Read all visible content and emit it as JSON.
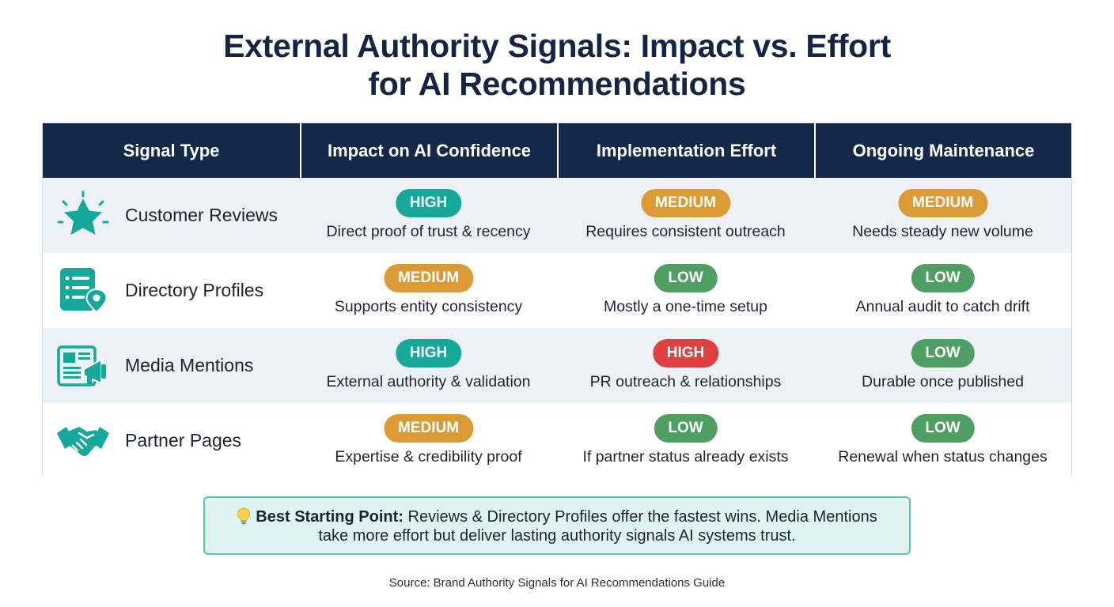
{
  "title": {
    "line1": "External Authority Signals: Impact vs. Effort",
    "line2": "for AI Recommendations"
  },
  "table": {
    "headers": [
      "Signal Type",
      "Impact on AI Confidence",
      "Implementation Effort",
      "Ongoing Maintenance"
    ],
    "rows": [
      {
        "signal": "Customer Reviews",
        "icon": "star-icon",
        "impact": {
          "level": "HIGH",
          "desc": "Direct proof of trust & recency"
        },
        "effort": {
          "level": "MEDIUM",
          "desc": "Requires consistent outreach"
        },
        "maintenance": {
          "level": "MEDIUM",
          "desc": "Needs steady new volume"
        }
      },
      {
        "signal": "Directory Profiles",
        "icon": "directory-listing-icon",
        "impact": {
          "level": "MEDIUM",
          "desc": "Supports entity consistency"
        },
        "effort": {
          "level": "LOW",
          "desc": "Mostly a one-time setup"
        },
        "maintenance": {
          "level": "LOW",
          "desc": "Annual audit to catch drift"
        }
      },
      {
        "signal": "Media Mentions",
        "icon": "newspaper-megaphone-icon",
        "impact": {
          "level": "HIGH",
          "desc": "External authority & validation"
        },
        "effort": {
          "level": "HIGH",
          "desc": "PR outreach & relationships"
        },
        "maintenance": {
          "level": "LOW",
          "desc": "Durable once published"
        }
      },
      {
        "signal": "Partner Pages",
        "icon": "handshake-icon",
        "impact": {
          "level": "MEDIUM",
          "desc": "Expertise & credibility proof"
        },
        "effort": {
          "level": "LOW",
          "desc": "If partner status already exists"
        },
        "maintenance": {
          "level": "LOW",
          "desc": "Renewal when status changes"
        }
      }
    ]
  },
  "callout": {
    "icon": "lightbulb-icon",
    "label": "Best Starting Point:",
    "text_line1": "Reviews & Directory Profiles offer the fastest wins. Media Mentions",
    "text_line2": "take more effort but deliver lasting authority signals AI systems trust."
  },
  "source": "Source: Brand Authority Signals for AI Recommendations Guide",
  "colors": {
    "header_bg": "#14294a",
    "teal": "#16a89a",
    "orange": "#dc9a35",
    "green": "#4f9f62",
    "red": "#de4140",
    "callout_bg": "#dff3f2",
    "callout_border": "#5cc2b6"
  }
}
